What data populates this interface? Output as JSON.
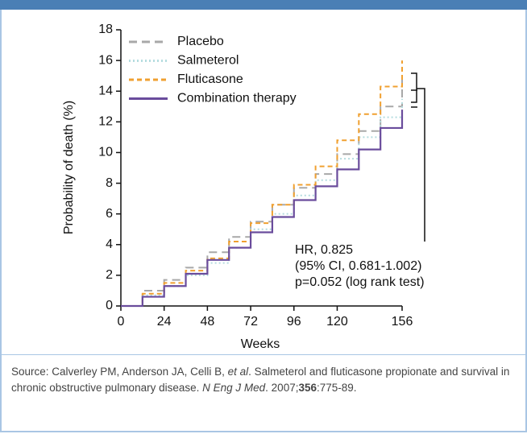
{
  "chart_data": {
    "type": "line",
    "x_label": "Weeks",
    "y_label": "Probability of death (%)",
    "x": [
      0,
      12,
      24,
      36,
      48,
      60,
      72,
      84,
      96,
      108,
      120,
      132,
      144,
      156
    ],
    "series": [
      {
        "name": "Placebo",
        "color": "#a8a8a8",
        "values": [
          0,
          1.0,
          1.7,
          2.5,
          3.5,
          4.5,
          5.5,
          6.6,
          7.7,
          8.6,
          9.9,
          11.4,
          13.0,
          14.8
        ]
      },
      {
        "name": "Salmeterol",
        "color": "#b4dcdf",
        "values": [
          0,
          0.7,
          1.3,
          2.0,
          2.8,
          3.8,
          5.0,
          6.0,
          7.2,
          8.2,
          9.6,
          11.0,
          12.3,
          13.5
        ]
      },
      {
        "name": "Fluticasone",
        "color": "#f0a030",
        "values": [
          0,
          0.8,
          1.5,
          2.3,
          3.1,
          4.2,
          5.4,
          6.6,
          7.9,
          9.1,
          10.8,
          12.5,
          14.3,
          16.0
        ]
      },
      {
        "name": "Combination therapy",
        "color": "#6a4c9c",
        "values": [
          0,
          0.6,
          1.3,
          2.1,
          3.0,
          3.8,
          4.8,
          5.8,
          6.9,
          7.8,
          8.9,
          10.2,
          11.6,
          12.8
        ]
      }
    ],
    "xlim": [
      0,
      156
    ],
    "xticks": [
      0,
      24,
      48,
      72,
      96,
      120,
      156
    ],
    "ylim": [
      0,
      18
    ],
    "yticks": [
      0,
      2,
      4,
      6,
      8,
      10,
      12,
      14,
      16,
      18
    ],
    "annotations": [
      "HR, 0.825",
      "(95% CI, 0.681-1.002)",
      "p=0.052 (log rank test)"
    ]
  },
  "source": [
    "Source:  Calverley PM, Anderson JA, Celli B, ",
    "et al",
    ". Salmeterol and fluticasone propionate and survival in chronic obstructive pulmonary disease. ",
    "N Eng J Med",
    ". 2007;",
    "356",
    ":775-89."
  ]
}
